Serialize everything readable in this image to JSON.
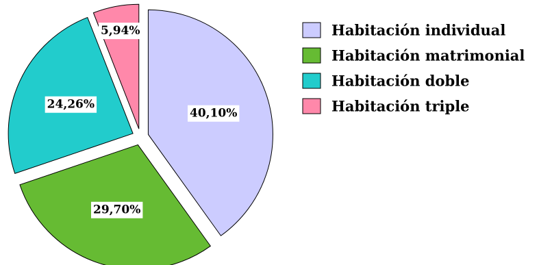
{
  "chart_data": {
    "type": "pie",
    "title": "",
    "legend_position": "right",
    "slices": [
      {
        "label": "Habitación individual",
        "value": 40.1,
        "value_label": "40,10%",
        "color": "#CCCCFF",
        "exploded": true
      },
      {
        "label": "Habitación matrimonial",
        "value": 29.7,
        "value_label": "29,70%",
        "color": "#66BB33",
        "exploded": true
      },
      {
        "label": "Habitación doble",
        "value": 24.26,
        "value_label": "24,26%",
        "color": "#22CCCC",
        "exploded": true
      },
      {
        "label": "Habitación triple",
        "value": 5.94,
        "value_label": "5,94%",
        "color": "#FF88AA",
        "exploded": true
      }
    ]
  }
}
